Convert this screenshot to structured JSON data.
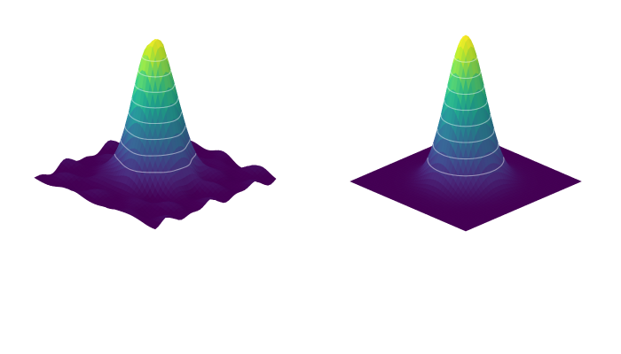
{
  "chart_data": [
    {
      "type": "surface",
      "title": "",
      "xlabel": "",
      "ylabel": "",
      "zlabel": "",
      "axes_visible": false,
      "colormap": "viridis",
      "contour_lines": "white",
      "z_peak": 1.0,
      "shape": "noisy gaussian peak",
      "perturbation": {
        "dip": {
          "x": -0.55,
          "y": -0.15,
          "depth": 0.07
        },
        "noise": 0.025
      }
    },
    {
      "type": "surface",
      "title": "",
      "xlabel": "",
      "ylabel": "",
      "zlabel": "",
      "axes_visible": false,
      "colormap": "viridis",
      "contour_lines": "white",
      "z_peak": 1.0,
      "shape": "smooth gaussian peak"
    }
  ],
  "colors": {
    "background": "#ffffff",
    "viridis_stops": [
      "#440154",
      "#482878",
      "#3e4989",
      "#31688e",
      "#26828e",
      "#1f9e89",
      "#35b779",
      "#6ece58",
      "#b5de2b",
      "#fde725"
    ]
  }
}
